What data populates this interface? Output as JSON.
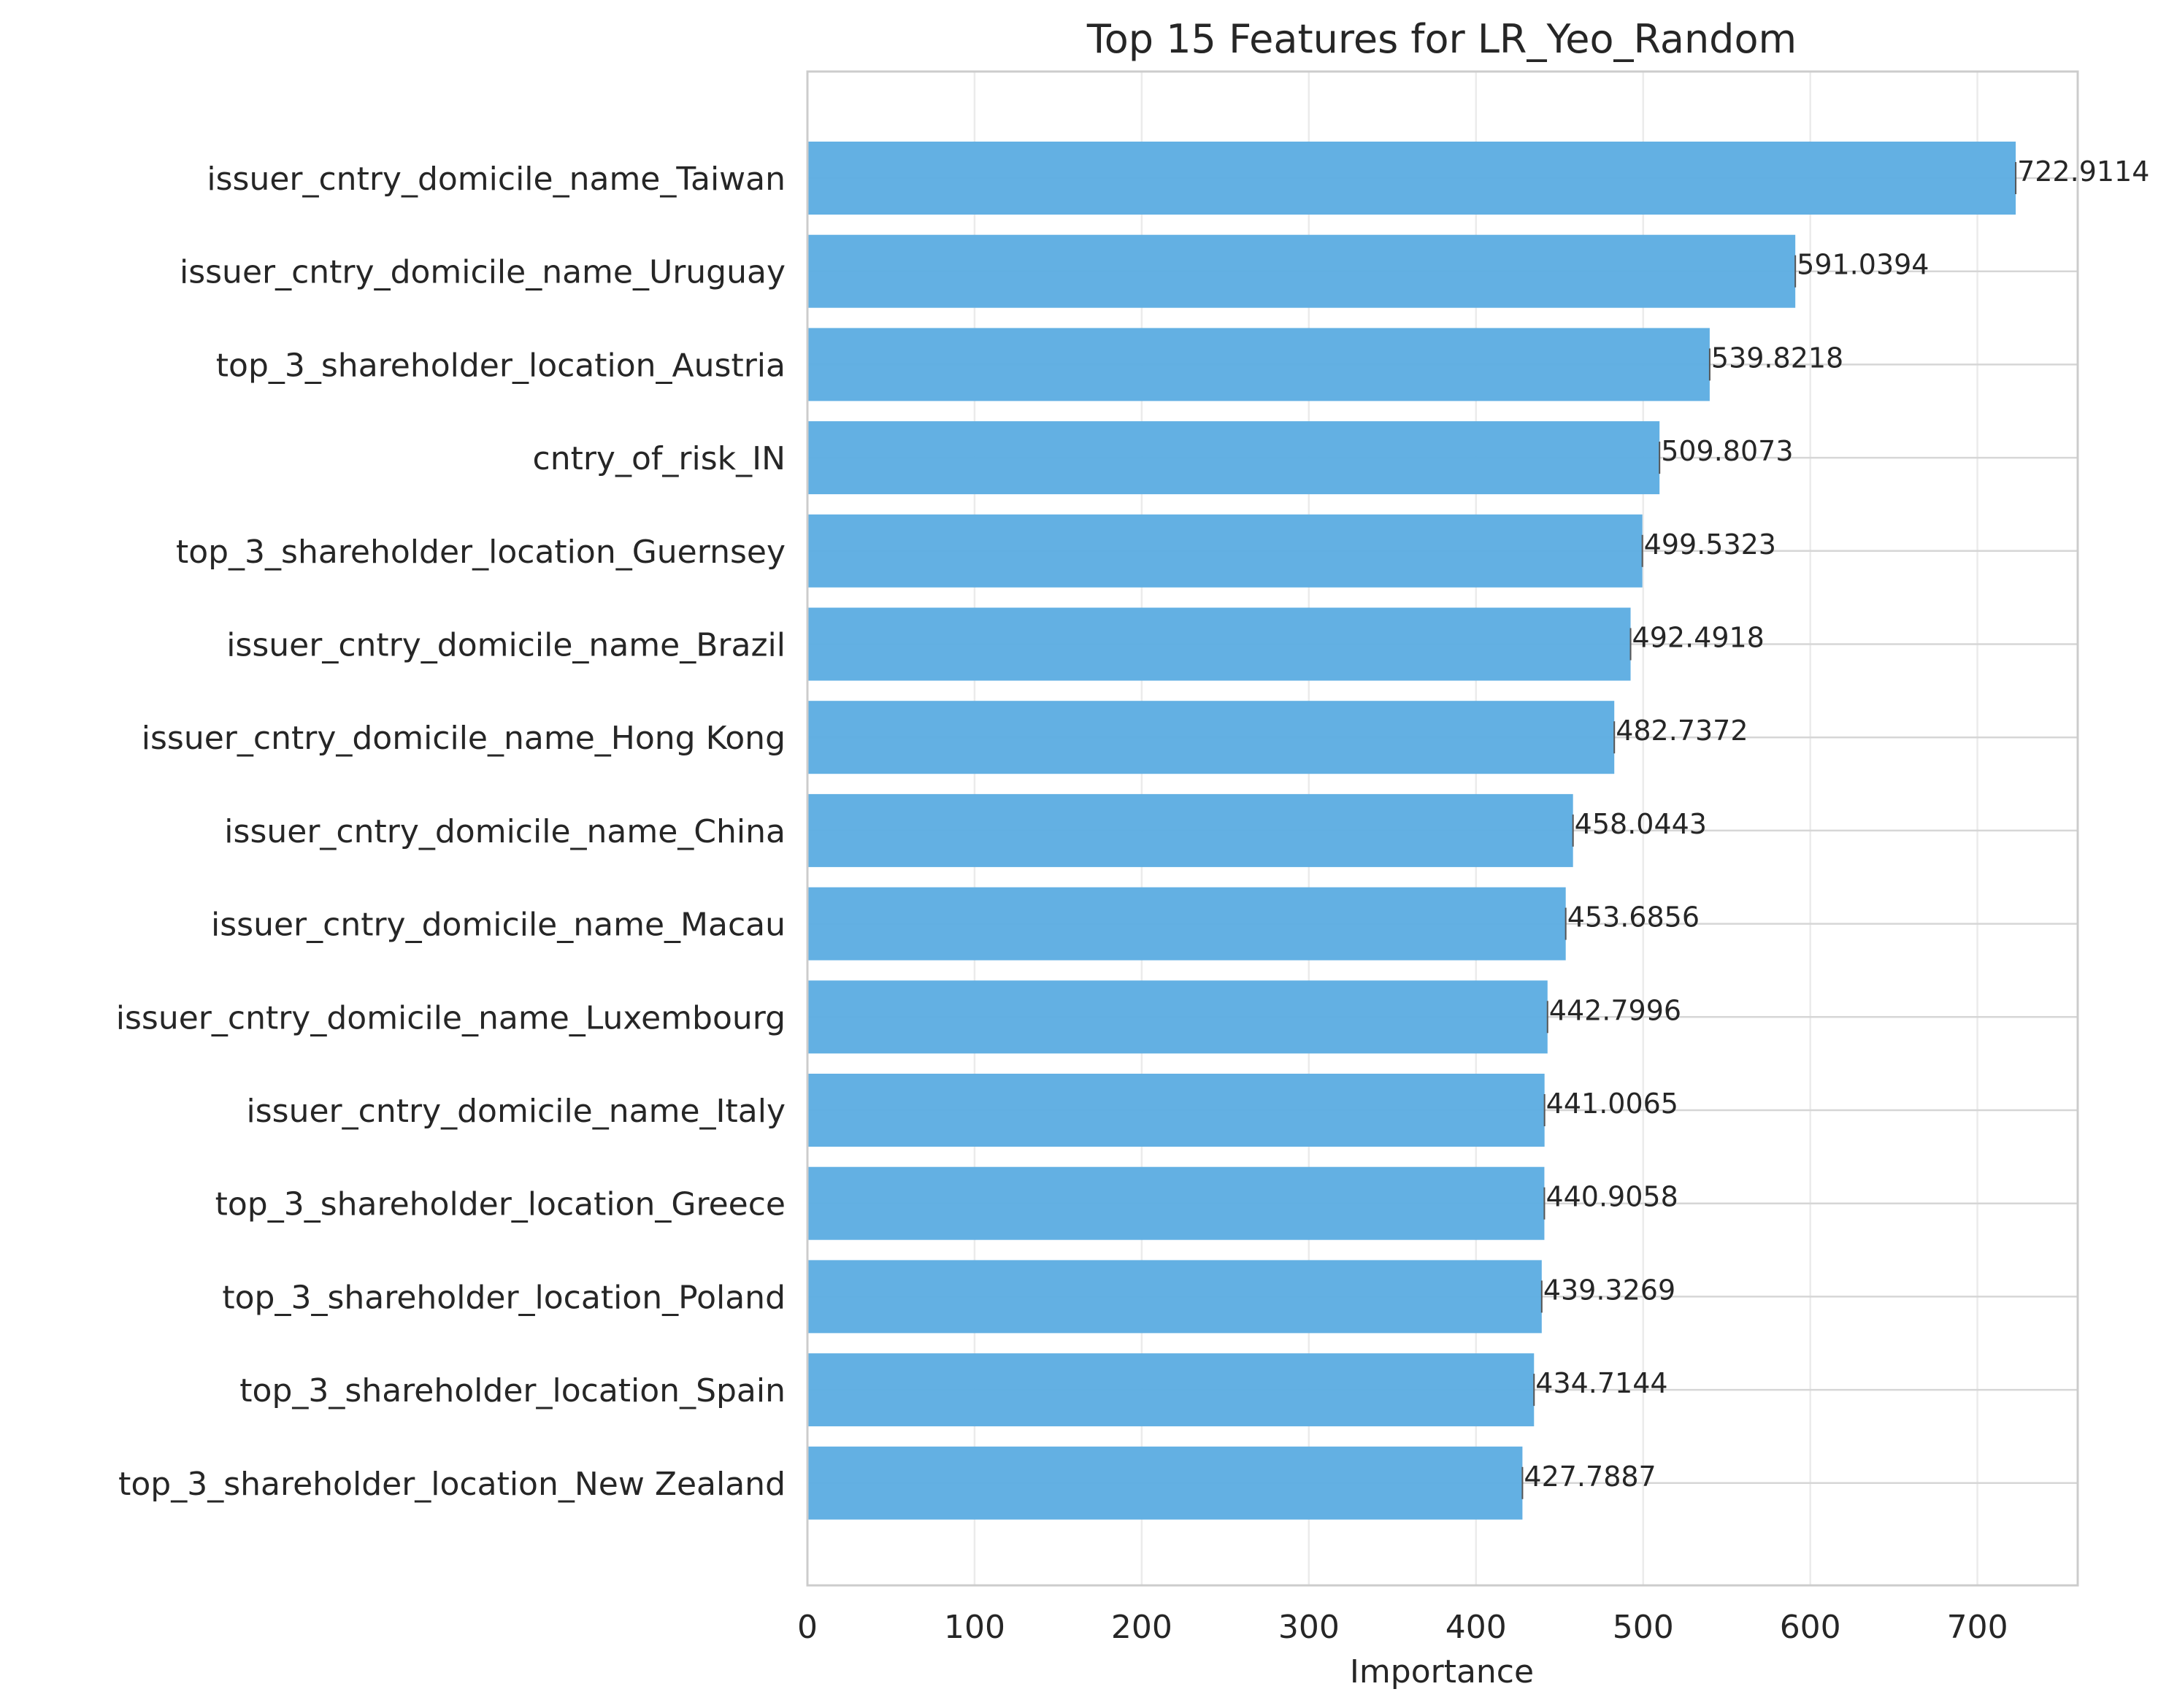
{
  "chart_data": {
    "type": "bar",
    "orientation": "horizontal",
    "title": "Top 15 Features for LR_Yeo_Random",
    "xlabel": "Importance",
    "ylabel": "",
    "xlim": [
      0,
      760
    ],
    "xticks": [
      "0",
      "100",
      "200",
      "300",
      "400",
      "500",
      "600",
      "700"
    ],
    "xtick_values": [
      0,
      100,
      200,
      300,
      400,
      500,
      600,
      700
    ],
    "grid": true,
    "bar_color": "#5DADE2",
    "categories": [
      "issuer_cntry_domicile_name_Taiwan",
      "issuer_cntry_domicile_name_Uruguay",
      "top_3_shareholder_location_Austria",
      "cntry_of_risk_IN",
      "top_3_shareholder_location_Guernsey",
      "issuer_cntry_domicile_name_Brazil",
      "issuer_cntry_domicile_name_Hong Kong",
      "issuer_cntry_domicile_name_China",
      "issuer_cntry_domicile_name_Macau",
      "issuer_cntry_domicile_name_Luxembourg",
      "issuer_cntry_domicile_name_Italy",
      "top_3_shareholder_location_Greece",
      "top_3_shareholder_location_Poland",
      "top_3_shareholder_location_Spain",
      "top_3_shareholder_location_New Zealand"
    ],
    "values": [
      722.9114,
      591.0394,
      539.8218,
      509.8073,
      499.5323,
      492.4918,
      482.7372,
      458.0443,
      453.6856,
      442.7996,
      441.0065,
      440.9058,
      439.3269,
      434.7144,
      427.7887
    ],
    "value_labels": [
      "722.9114",
      "591.0394",
      "539.8218",
      "509.8073",
      "499.5323",
      "492.4918",
      "482.7372",
      "458.0443",
      "453.6856",
      "442.7996",
      "441.0065",
      "440.9058",
      "439.3269",
      "434.7144",
      "427.7887"
    ]
  }
}
